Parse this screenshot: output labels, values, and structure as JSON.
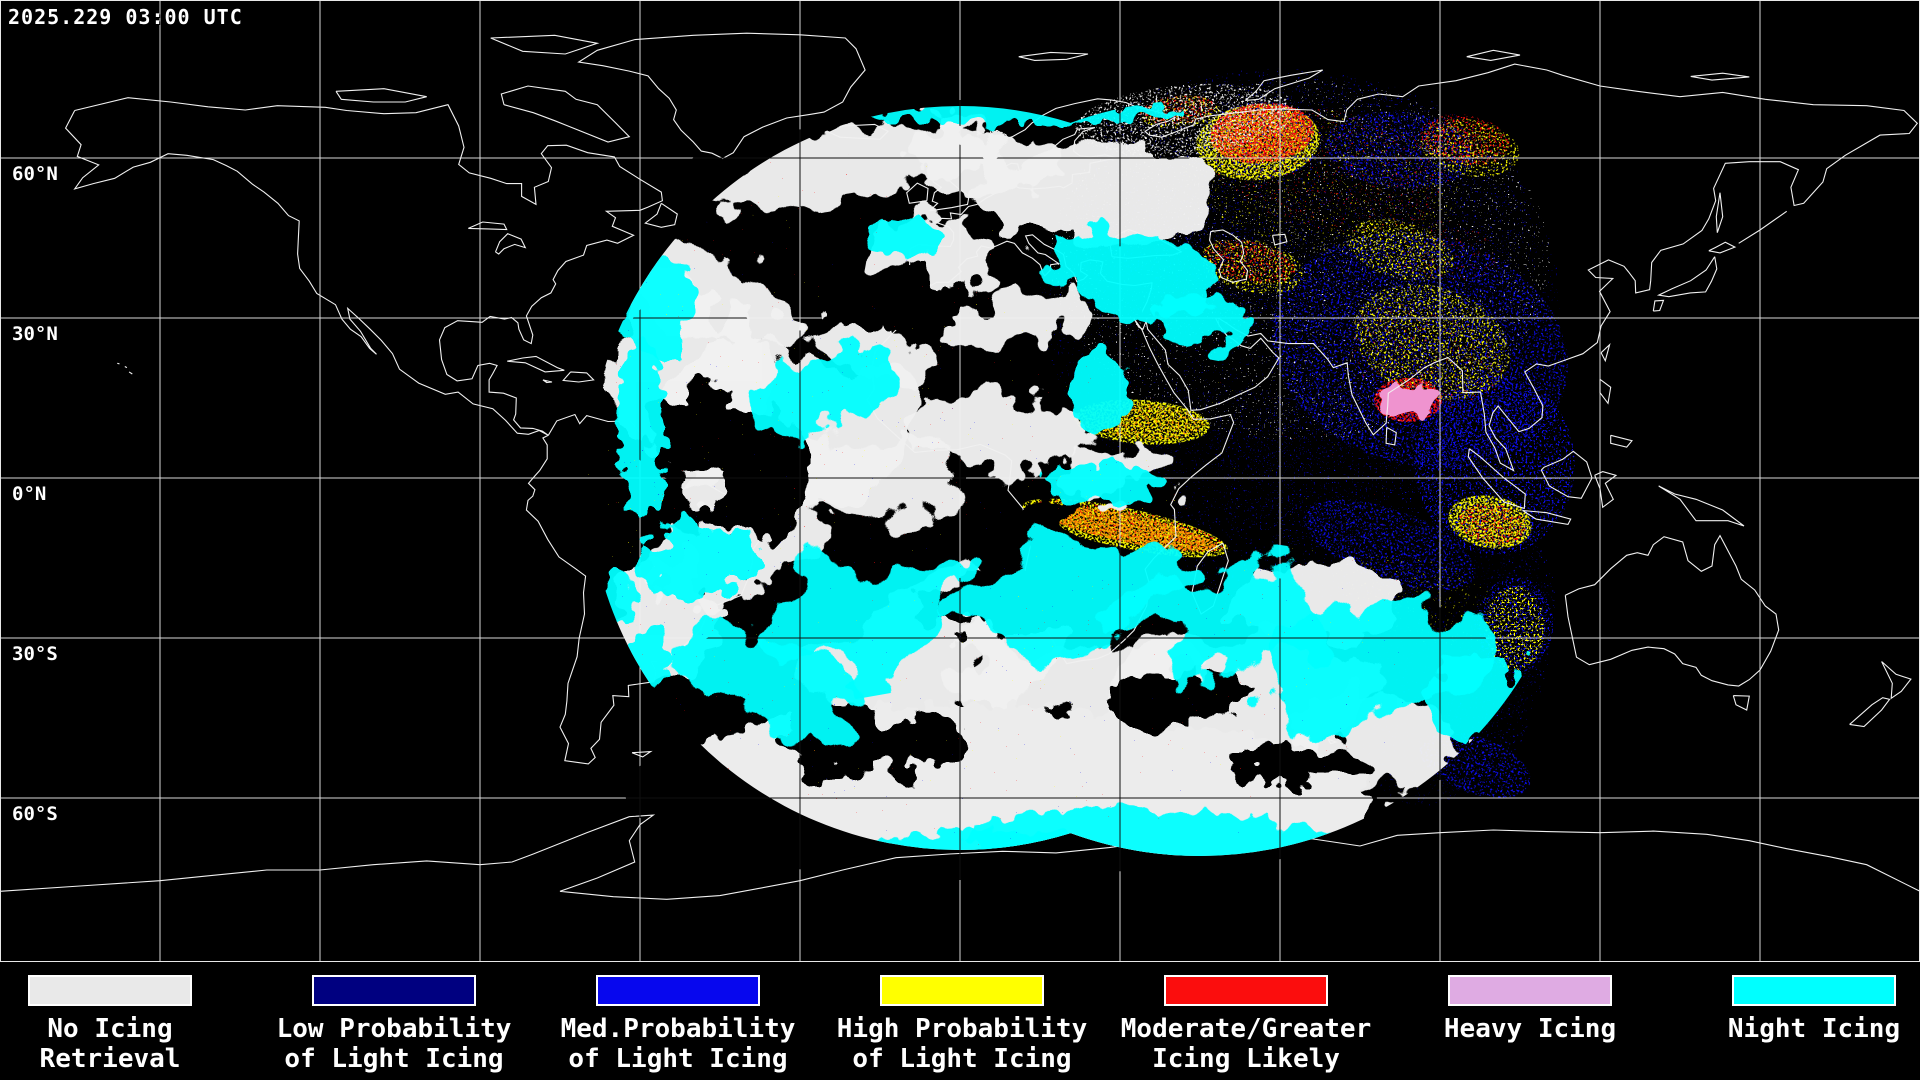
{
  "header": {
    "timestamp": "2025.229 03:00 UTC"
  },
  "map": {
    "latitude_labels": [
      "60°N",
      "30°N",
      "0°N",
      "30°S",
      "60°S"
    ],
    "grid_color": "#d9d9d9",
    "coastline_color": "#f0f0f0",
    "background_color": "#000000"
  },
  "legend": {
    "items": [
      {
        "name": "no-icing-retrieval",
        "color": "#e9e9e9",
        "line1": "No Icing",
        "line2": "Retrieval"
      },
      {
        "name": "low-prob-light-icing",
        "color": "#000080",
        "line1": "Low Probability",
        "line2": "of Light Icing"
      },
      {
        "name": "med-prob-light-icing",
        "color": "#0707ee",
        "line1": "Med.Probability",
        "line2": "of Light Icing"
      },
      {
        "name": "high-prob-light-icing",
        "color": "#ffff00",
        "line1": "High Probability",
        "line2": "of Light Icing"
      },
      {
        "name": "moderate-greater-icing",
        "color": "#fb0d0d",
        "line1": "Moderate/Greater",
        "line2": "Icing Likely"
      },
      {
        "name": "heavy-icing",
        "color": "#dfabe3",
        "line1": "Heavy Icing",
        "line2": ""
      },
      {
        "name": "night-icing",
        "color": "#00ffff",
        "line1": "Night Icing",
        "line2": ""
      }
    ]
  }
}
